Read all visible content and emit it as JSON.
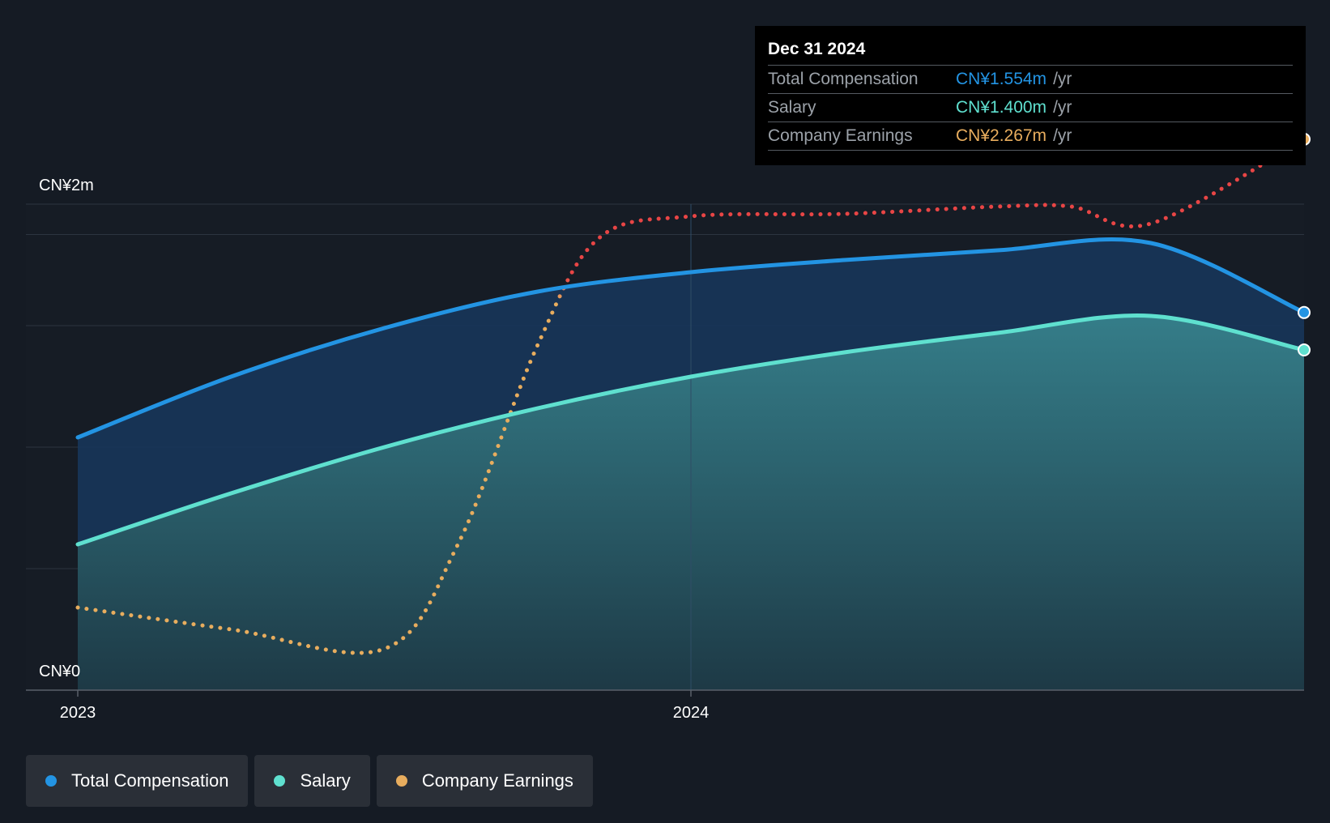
{
  "chart_data": {
    "type": "area",
    "y_axis": {
      "top_label": "CN¥2m",
      "bottom_label": "CN¥0",
      "ylim": [
        0,
        2.0
      ],
      "unit": "CN¥m"
    },
    "x_axis": {
      "ticks": [
        "2023",
        "2024"
      ],
      "tick_values": [
        2023.0,
        2024.0
      ],
      "xlim": [
        2022.92,
        2025.0
      ]
    },
    "grid": true,
    "series": [
      {
        "name": "Total Compensation",
        "color": "#2394e3",
        "style": "solid-area",
        "points": [
          [
            2023.0,
            1.04
          ],
          [
            2023.25,
            1.29
          ],
          [
            2023.5,
            1.49
          ],
          [
            2023.75,
            1.64
          ],
          [
            2024.0,
            1.72
          ],
          [
            2024.25,
            1.77
          ],
          [
            2024.5,
            1.81
          ],
          [
            2024.75,
            1.84
          ],
          [
            2025.0,
            1.554
          ]
        ]
      },
      {
        "name": "Salary",
        "color": "#5fe0cf",
        "style": "solid-area",
        "points": [
          [
            2023.0,
            0.6
          ],
          [
            2023.25,
            0.81
          ],
          [
            2023.5,
            1.0
          ],
          [
            2023.75,
            1.16
          ],
          [
            2024.0,
            1.29
          ],
          [
            2024.25,
            1.39
          ],
          [
            2024.5,
            1.47
          ],
          [
            2024.75,
            1.54
          ],
          [
            2025.0,
            1.4
          ]
        ]
      },
      {
        "name": "Company Earnings",
        "color": "#e8ad5e",
        "negative_color": "#e84545",
        "style": "dotted",
        "points": [
          [
            2023.0,
            0.34
          ],
          [
            2023.25,
            0.25
          ],
          [
            2023.5,
            0.17
          ],
          [
            2023.62,
            0.6
          ],
          [
            2023.75,
            1.42
          ],
          [
            2023.85,
            1.86
          ],
          [
            2024.0,
            1.95
          ],
          [
            2024.25,
            1.96
          ],
          [
            2024.5,
            1.99
          ],
          [
            2024.62,
            1.99
          ],
          [
            2024.75,
            1.92
          ],
          [
            2025.0,
            2.267
          ]
        ]
      }
    ]
  },
  "tooltip": {
    "date": "Dec 31 2024",
    "rows": [
      {
        "label": "Total Compensation",
        "value": "CN¥1.554m",
        "unit": "/yr",
        "color": "#2394e3"
      },
      {
        "label": "Salary",
        "value": "CN¥1.400m",
        "unit": "/yr",
        "color": "#5fe0cf"
      },
      {
        "label": "Company Earnings",
        "value": "CN¥2.267m",
        "unit": "/yr",
        "color": "#e8ad5e"
      }
    ]
  },
  "legend": [
    {
      "label": "Total Compensation",
      "color": "#2394e3"
    },
    {
      "label": "Salary",
      "color": "#5fe0cf"
    },
    {
      "label": "Company Earnings",
      "color": "#e8ad5e"
    }
  ]
}
